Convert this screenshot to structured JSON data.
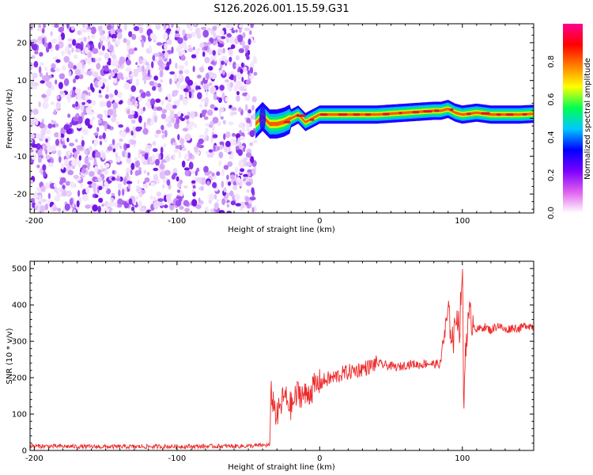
{
  "title": "S126.2026.001.15.59.G31",
  "colors": {
    "background": "#ffffff",
    "snr_line": "#ee2a2a",
    "noise": "#7a2ee0"
  },
  "chart_data": [
    {
      "type": "heatmap",
      "xlabel": "Height of straight line (km)",
      "ylabel": "Frequency (Hz)",
      "xlim": [
        -203,
        150
      ],
      "ylim": [
        -25,
        25
      ],
      "xticks": [
        -200,
        -100,
        0,
        100
      ],
      "yticks": [
        -20,
        -10,
        0,
        10,
        20
      ],
      "colorbar": {
        "label": "Normalized spectral amplitude",
        "range": [
          0,
          1
        ],
        "ticks": [
          0.0,
          0.2,
          0.4,
          0.6,
          0.8
        ],
        "tick_labels": [
          "0.0",
          "0.2",
          "0.4",
          "0.6",
          "0.8"
        ],
        "colormap": [
          "#ffffff",
          "#e060f0",
          "#7a00ff",
          "#0000ff",
          "#00c8ff",
          "#00ff50",
          "#ffff00",
          "#ff8000",
          "#ff0000",
          "#ff0090"
        ]
      },
      "noise_region_x": [
        -203,
        -45
      ],
      "signal_track": {
        "x": [
          -45,
          -40,
          -35,
          -30,
          -25,
          -20,
          -15,
          -10,
          -5,
          0,
          10,
          20,
          40,
          60,
          80,
          85,
          90,
          95,
          100,
          110,
          120,
          130,
          140,
          150
        ],
        "frequency_hz": [
          -1.5,
          0.5,
          -1.5,
          -1.5,
          -1,
          0,
          1,
          -1,
          0,
          1,
          1,
          1,
          1,
          1.5,
          2,
          2,
          2.5,
          1.5,
          1,
          1.5,
          1,
          1,
          1,
          1.2
        ]
      }
    },
    {
      "type": "line",
      "xlabel": "Height of straight line (km)",
      "ylabel": "SNR (10 * v/v)",
      "xlim": [
        -203,
        150
      ],
      "ylim": [
        0,
        520
      ],
      "xticks": [
        -200,
        -100,
        0,
        100
      ],
      "yticks": [
        0,
        100,
        200,
        300,
        400,
        500
      ],
      "series": [
        {
          "name": "SNR",
          "x": [
            -203,
            -150,
            -100,
            -50,
            -35,
            -34,
            -30,
            -25,
            -20,
            -15,
            -10,
            -5,
            0,
            5,
            10,
            15,
            20,
            25,
            30,
            35,
            40,
            45,
            50,
            55,
            60,
            65,
            70,
            75,
            80,
            85,
            86,
            88,
            90,
            92,
            94,
            96,
            98,
            99,
            100,
            101,
            102,
            103,
            105,
            108,
            110,
            115,
            120,
            125,
            130,
            135,
            140,
            145,
            150
          ],
          "y": [
            12,
            10,
            11,
            12,
            15,
            160,
            90,
            150,
            120,
            160,
            150,
            170,
            185,
            195,
            200,
            210,
            215,
            220,
            225,
            230,
            240,
            235,
            232,
            228,
            235,
            238,
            235,
            240,
            237,
            238,
            300,
            320,
            380,
            330,
            300,
            390,
            330,
            420,
            510,
            90,
            280,
            320,
            370,
            350,
            330,
            340,
            330,
            345,
            330,
            338,
            335,
            345,
            340
          ]
        }
      ]
    }
  ]
}
